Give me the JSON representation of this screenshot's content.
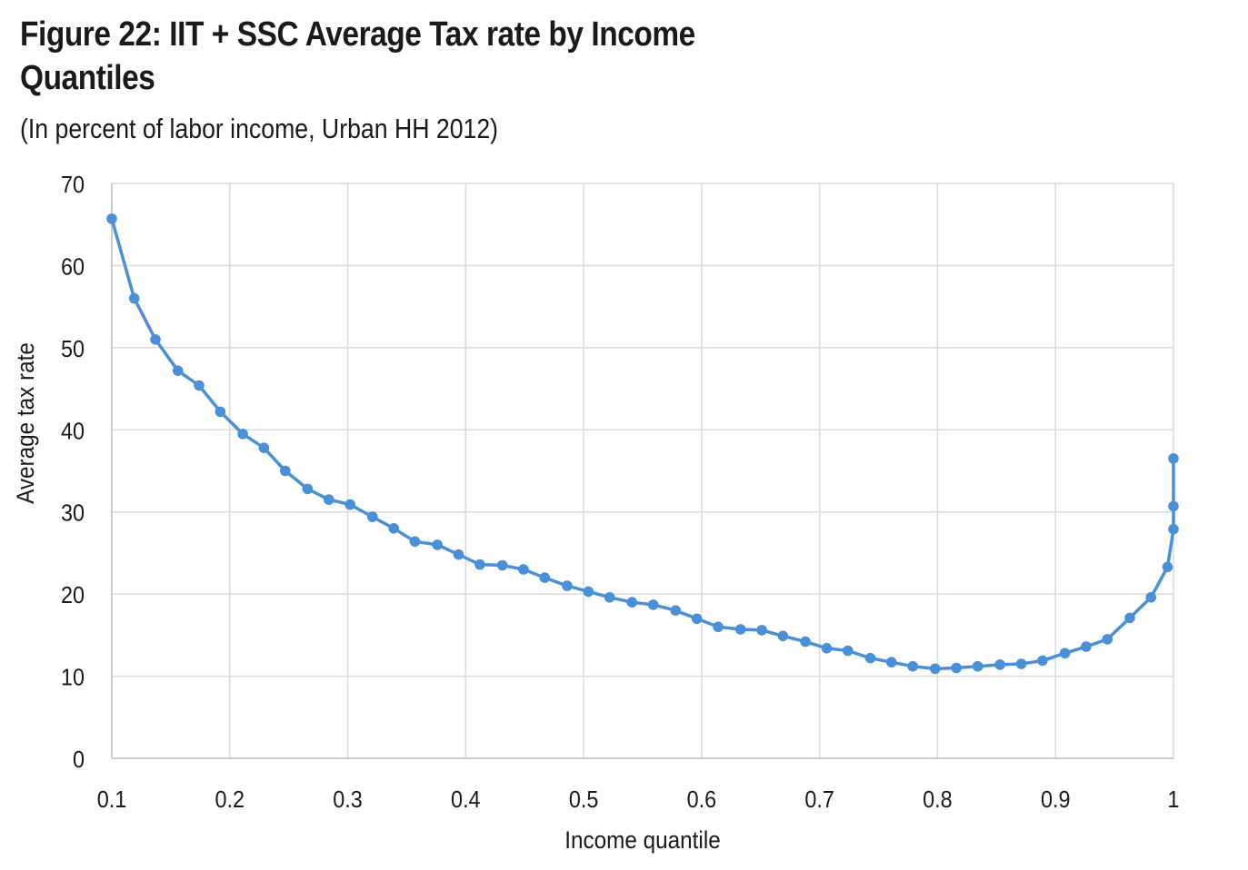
{
  "figure": {
    "title_line1": "Figure 22: IIT + SSC Average Tax rate by Income",
    "title_line2": "Quantiles",
    "subtitle": "(In percent of labor income, Urban HH 2012)"
  },
  "chart_data": {
    "type": "line",
    "xlabel": "Income quantile",
    "ylabel": "Average tax rate",
    "xlim": [
      0.1,
      1
    ],
    "ylim": [
      0,
      70
    ],
    "x_ticks": [
      "0.1",
      "0.2",
      "0.3",
      "0.4",
      "0.5",
      "0.6",
      "0.7",
      "0.8",
      "0.9",
      "1"
    ],
    "y_ticks": [
      "0",
      "10",
      "20",
      "30",
      "40",
      "50",
      "60",
      "70"
    ],
    "grid": true,
    "line_color": "#4a90d9",
    "series": [
      {
        "x": [
          0.1,
          0.119,
          0.137,
          0.156,
          0.174,
          0.192,
          0.211,
          0.229,
          0.247,
          0.266,
          0.284,
          0.302,
          0.321,
          0.339,
          0.357,
          0.376,
          0.394,
          0.412,
          0.431,
          0.449,
          0.467,
          0.486,
          0.504,
          0.522,
          0.541,
          0.559,
          0.578,
          0.596,
          0.614,
          0.633,
          0.651,
          0.669,
          0.688,
          0.706,
          0.724,
          0.743,
          0.761,
          0.779,
          0.798,
          0.816,
          0.834,
          0.853,
          0.871,
          0.889,
          0.908,
          0.926,
          0.944,
          0.963,
          0.981,
          0.995,
          1.0,
          1.0,
          1.0
        ],
        "y": [
          65.7,
          56.0,
          51.0,
          47.2,
          45.4,
          42.2,
          39.5,
          37.8,
          35.0,
          32.8,
          31.5,
          30.9,
          29.4,
          28.0,
          26.4,
          26.0,
          24.8,
          23.6,
          23.5,
          23.0,
          22.0,
          21.0,
          20.3,
          19.6,
          19.0,
          18.7,
          18.0,
          17.0,
          16.0,
          15.7,
          15.6,
          14.9,
          14.2,
          13.4,
          13.1,
          12.2,
          11.7,
          11.2,
          10.9,
          11.0,
          11.2,
          11.4,
          11.5,
          11.9,
          12.8,
          13.6,
          14.5,
          17.1,
          19.6,
          23.3,
          27.9,
          30.7,
          36.5
        ]
      }
    ]
  }
}
